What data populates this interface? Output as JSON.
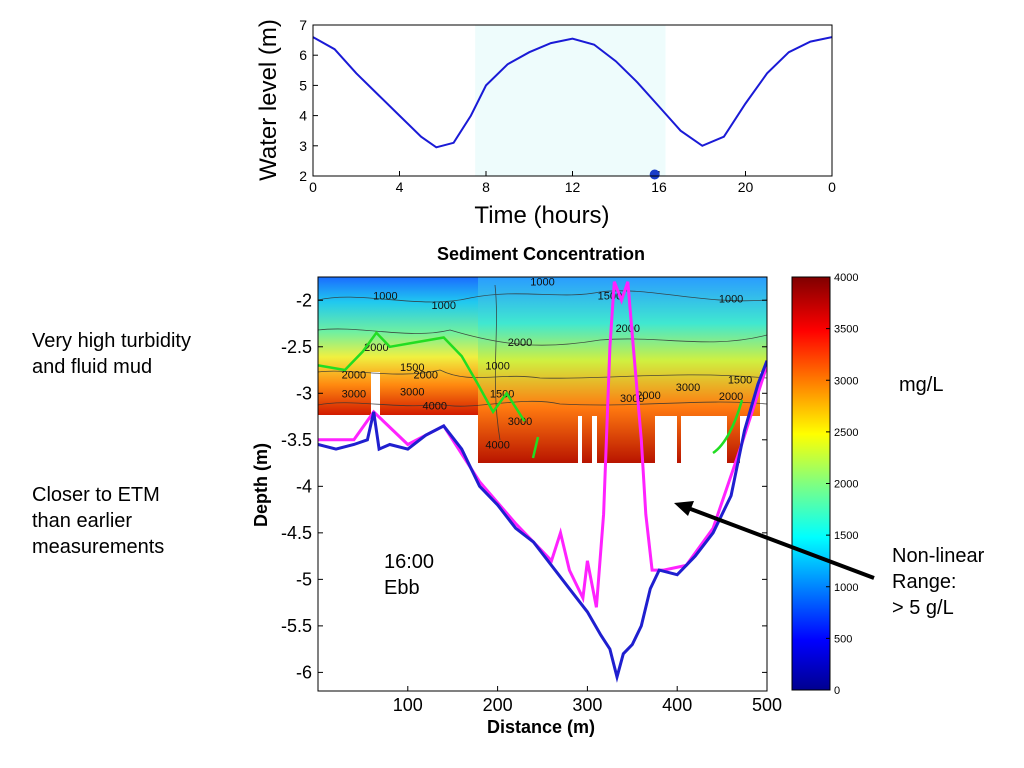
{
  "page": {
    "notes": {
      "turbidity": "Very high turbidity\nand fluid mud",
      "etm": "Closer to ETM\nthan earlier\nmeasurements",
      "time_tag": "16:00\nEbb",
      "units": "mg/L",
      "range": "Non-linear\nRange:\n> 5 g/L"
    }
  },
  "chart_data": [
    {
      "type": "line",
      "title": "",
      "xlabel": "Time (hours)",
      "ylabel": "Water level (m)",
      "xlim": [
        0,
        24
      ],
      "ylim": [
        2,
        7
      ],
      "x_tick_labels": [
        "0",
        "4",
        "8",
        "12",
        "16",
        "20",
        "0"
      ],
      "y_tick_labels": [
        "2",
        "3",
        "4",
        "5",
        "6",
        "7"
      ],
      "series": [
        {
          "values": [
            {
              "x": 0,
              "y": 6.6
            },
            {
              "x": 1,
              "y": 6.2
            },
            {
              "x": 2,
              "y": 5.4
            },
            {
              "x": 3,
              "y": 4.7
            },
            {
              "x": 4,
              "y": 4.0
            },
            {
              "x": 5,
              "y": 3.3
            },
            {
              "x": 5.7,
              "y": 2.95
            },
            {
              "x": 6.5,
              "y": 3.1
            },
            {
              "x": 7.3,
              "y": 4.0
            },
            {
              "x": 8,
              "y": 5.0
            },
            {
              "x": 9,
              "y": 5.7
            },
            {
              "x": 10,
              "y": 6.1
            },
            {
              "x": 11,
              "y": 6.4
            },
            {
              "x": 12,
              "y": 6.55
            },
            {
              "x": 13,
              "y": 6.35
            },
            {
              "x": 14,
              "y": 5.8
            },
            {
              "x": 15,
              "y": 5.1
            },
            {
              "x": 16,
              "y": 4.3
            },
            {
              "x": 17,
              "y": 3.5
            },
            {
              "x": 18,
              "y": 3.0
            },
            {
              "x": 19,
              "y": 3.3
            },
            {
              "x": 20,
              "y": 4.4
            },
            {
              "x": 21,
              "y": 5.4
            },
            {
              "x": 22,
              "y": 6.1
            },
            {
              "x": 23,
              "y": 6.45
            },
            {
              "x": 24,
              "y": 6.6
            }
          ]
        }
      ],
      "highlight_band_hours": [
        7.5,
        16.3
      ],
      "current_time_marker": {
        "x": 15.8,
        "y": 2.05
      }
    },
    {
      "type": "heatmap",
      "title": "Sediment Concentration",
      "xlabel": "Distance (m)",
      "ylabel": "Depth (m)",
      "xlim": [
        0,
        500
      ],
      "ylim": [
        -6.2,
        -1.75
      ],
      "x_tick_labels": [
        "100",
        "200",
        "300",
        "400",
        "500"
      ],
      "y_tick_labels": [
        "-2",
        "-2.5",
        "-3",
        "-3.5",
        "-4",
        "-4.5",
        "-5",
        "-5.5",
        "-6"
      ],
      "colorbar": {
        "range": [
          0,
          4000
        ],
        "tick_labels": [
          "0",
          "500",
          "1000",
          "1500",
          "2000",
          "2500",
          "3000",
          "3500",
          "4000"
        ],
        "units": "mg/L"
      },
      "contour_labels": [
        {
          "x": 75,
          "y": -1.95,
          "text": "1000"
        },
        {
          "x": 140,
          "y": -2.05,
          "text": "1000"
        },
        {
          "x": 250,
          "y": -1.8,
          "text": "1000"
        },
        {
          "x": 325,
          "y": -1.95,
          "text": "1500"
        },
        {
          "x": 460,
          "y": -1.98,
          "text": "1000"
        },
        {
          "x": 345,
          "y": -2.3,
          "text": "2000"
        },
        {
          "x": 225,
          "y": -2.45,
          "text": "2000"
        },
        {
          "x": 65,
          "y": -2.5,
          "text": "2000"
        },
        {
          "x": 105,
          "y": -2.72,
          "text": "1500"
        },
        {
          "x": 120,
          "y": -2.8,
          "text": "2000"
        },
        {
          "x": 40,
          "y": -2.8,
          "text": "2000"
        },
        {
          "x": 200,
          "y": -2.7,
          "text": "1000"
        },
        {
          "x": 40,
          "y": -3.0,
          "text": "3000"
        },
        {
          "x": 105,
          "y": -2.98,
          "text": "3000"
        },
        {
          "x": 130,
          "y": -3.13,
          "text": "4000"
        },
        {
          "x": 205,
          "y": -3.0,
          "text": "1500"
        },
        {
          "x": 225,
          "y": -3.3,
          "text": "3000"
        },
        {
          "x": 200,
          "y": -3.55,
          "text": "4000"
        },
        {
          "x": 350,
          "y": -3.05,
          "text": "3000"
        },
        {
          "x": 368,
          "y": -3.02,
          "text": "2000"
        },
        {
          "x": 412,
          "y": -2.93,
          "text": "3000"
        },
        {
          "x": 470,
          "y": -2.85,
          "text": "1500"
        },
        {
          "x": 460,
          "y": -3.03,
          "text": "2000"
        }
      ],
      "series": [
        {
          "color": "#1f1fcf",
          "values": [
            {
              "x": 0,
              "y": -3.55
            },
            {
              "x": 20,
              "y": -3.6
            },
            {
              "x": 40,
              "y": -3.55
            },
            {
              "x": 55,
              "y": -3.5
            },
            {
              "x": 62,
              "y": -3.2
            },
            {
              "x": 68,
              "y": -3.6
            },
            {
              "x": 80,
              "y": -3.55
            },
            {
              "x": 100,
              "y": -3.6
            },
            {
              "x": 120,
              "y": -3.45
            },
            {
              "x": 140,
              "y": -3.35
            },
            {
              "x": 160,
              "y": -3.6
            },
            {
              "x": 180,
              "y": -4.0
            },
            {
              "x": 200,
              "y": -4.2
            },
            {
              "x": 220,
              "y": -4.45
            },
            {
              "x": 240,
              "y": -4.6
            },
            {
              "x": 260,
              "y": -4.85
            },
            {
              "x": 280,
              "y": -5.1
            },
            {
              "x": 300,
              "y": -5.35
            },
            {
              "x": 315,
              "y": -5.6
            },
            {
              "x": 325,
              "y": -5.75
            },
            {
              "x": 333,
              "y": -6.05
            },
            {
              "x": 340,
              "y": -5.8
            },
            {
              "x": 350,
              "y": -5.7
            },
            {
              "x": 360,
              "y": -5.5
            },
            {
              "x": 370,
              "y": -5.1
            },
            {
              "x": 380,
              "y": -4.9
            },
            {
              "x": 400,
              "y": -4.95
            },
            {
              "x": 420,
              "y": -4.75
            },
            {
              "x": 440,
              "y": -4.5
            },
            {
              "x": 460,
              "y": -4.1
            },
            {
              "x": 475,
              "y": -3.4
            },
            {
              "x": 490,
              "y": -2.9
            },
            {
              "x": 500,
              "y": -2.65
            }
          ]
        },
        {
          "color": "#ff22ff",
          "values": [
            {
              "x": 0,
              "y": -3.5
            },
            {
              "x": 40,
              "y": -3.5
            },
            {
              "x": 62,
              "y": -3.2
            },
            {
              "x": 100,
              "y": -3.55
            },
            {
              "x": 140,
              "y": -3.35
            },
            {
              "x": 180,
              "y": -3.95
            },
            {
              "x": 220,
              "y": -4.4
            },
            {
              "x": 260,
              "y": -4.8
            },
            {
              "x": 270,
              "y": -4.5
            },
            {
              "x": 280,
              "y": -4.9
            },
            {
              "x": 295,
              "y": -5.2
            },
            {
              "x": 300,
              "y": -4.8
            },
            {
              "x": 310,
              "y": -5.3
            },
            {
              "x": 318,
              "y": -4.3
            },
            {
              "x": 325,
              "y": -2.5
            },
            {
              "x": 330,
              "y": -1.8
            },
            {
              "x": 338,
              "y": -2.0
            },
            {
              "x": 345,
              "y": -1.8
            },
            {
              "x": 352,
              "y": -2.6
            },
            {
              "x": 360,
              "y": -3.5
            },
            {
              "x": 365,
              "y": -4.3
            },
            {
              "x": 372,
              "y": -4.9
            },
            {
              "x": 385,
              "y": -4.9
            },
            {
              "x": 410,
              "y": -4.85
            },
            {
              "x": 440,
              "y": -4.45
            },
            {
              "x": 470,
              "y": -3.6
            },
            {
              "x": 500,
              "y": -2.7
            }
          ]
        },
        {
          "color": "#22dd22",
          "values": [
            {
              "x": 0,
              "y": -2.7
            },
            {
              "x": 30,
              "y": -2.75
            },
            {
              "x": 50,
              "y": -2.55
            },
            {
              "x": 65,
              "y": -2.35
            },
            {
              "x": 80,
              "y": -2.5
            },
            {
              "x": 110,
              "y": -2.45
            },
            {
              "x": 140,
              "y": -2.4
            },
            {
              "x": 160,
              "y": -2.6
            },
            {
              "x": 178,
              "y": -2.9
            },
            {
              "x": 195,
              "y": -3.2
            },
            {
              "x": 210,
              "y": -3.0
            },
            {
              "x": 230,
              "y": -3.3
            }
          ]
        }
      ]
    }
  ]
}
